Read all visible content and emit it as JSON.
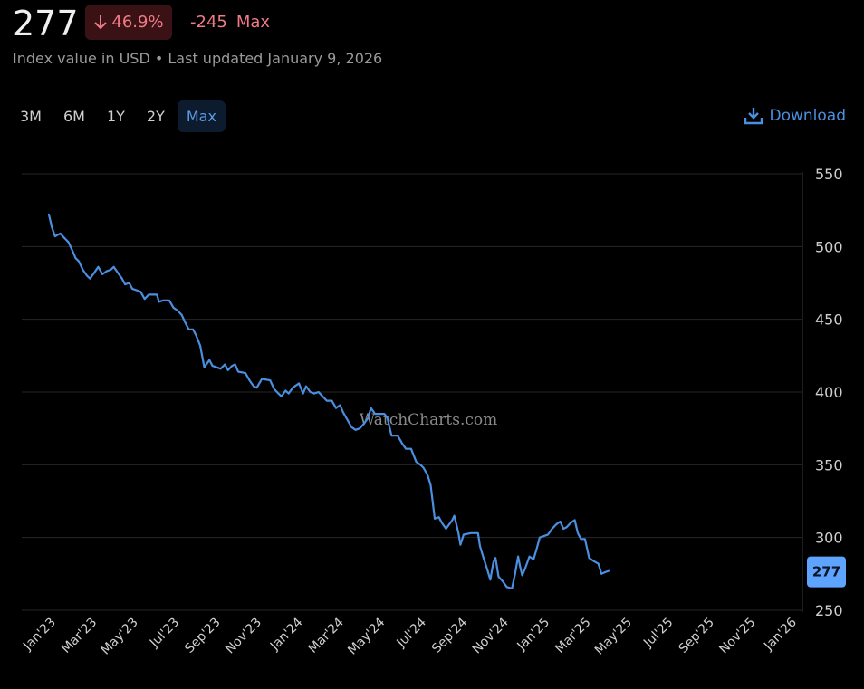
{
  "header": {
    "value": "277",
    "pct_change": "46.9%",
    "abs_change": "-245",
    "range_label": "Max",
    "subtitle": "Index value in USD • Last updated January 9, 2026"
  },
  "range_tabs": [
    {
      "label": "3M",
      "active": false
    },
    {
      "label": "6M",
      "active": false
    },
    {
      "label": "1Y",
      "active": false
    },
    {
      "label": "2Y",
      "active": false
    },
    {
      "label": "Max",
      "active": true
    }
  ],
  "download_label": "Download",
  "watermark": "WatchCharts.com",
  "colors": {
    "line": "#4a8fe0",
    "negative": "#f07b86",
    "grid": "#262626",
    "badge_bg": "#3a1216",
    "last_label_bg": "#5ea4ff"
  },
  "chart_data": {
    "type": "line",
    "title": "",
    "xlabel": "",
    "ylabel": "",
    "ylim": [
      250,
      550
    ],
    "yticks": [
      550,
      500,
      450,
      400,
      350,
      300,
      250
    ],
    "xticks": [
      "Jan'23",
      "Mar'23",
      "May'23",
      "Jul'23",
      "Sep'23",
      "Nov'23",
      "Jan'24",
      "Mar'24",
      "May'24",
      "Jul'24",
      "Sep'24",
      "Nov'24",
      "Jan'25",
      "Mar'25",
      "May'25",
      "Jul'25",
      "Sep'25",
      "Nov'25",
      "Jan'26"
    ],
    "grid": true,
    "legend": "none",
    "last_value_label": "277",
    "series": [
      {
        "x_unit": "months since Jan 2023",
        "points": [
          [
            0.0,
            522
          ],
          [
            0.15,
            513
          ],
          [
            0.3,
            507
          ],
          [
            0.55,
            509
          ],
          [
            0.75,
            506
          ],
          [
            0.95,
            503
          ],
          [
            1.15,
            497
          ],
          [
            1.3,
            492
          ],
          [
            1.45,
            490
          ],
          [
            1.65,
            484
          ],
          [
            1.85,
            480
          ],
          [
            2.0,
            478
          ],
          [
            2.2,
            482
          ],
          [
            2.4,
            486
          ],
          [
            2.6,
            481
          ],
          [
            2.8,
            483
          ],
          [
            3.0,
            484
          ],
          [
            3.15,
            486
          ],
          [
            3.35,
            482
          ],
          [
            3.55,
            478
          ],
          [
            3.7,
            474
          ],
          [
            3.9,
            475
          ],
          [
            4.05,
            471
          ],
          [
            4.25,
            470
          ],
          [
            4.45,
            469
          ],
          [
            4.65,
            464
          ],
          [
            4.85,
            467
          ],
          [
            5.05,
            467
          ],
          [
            5.25,
            467
          ],
          [
            5.35,
            462
          ],
          [
            5.55,
            463
          ],
          [
            5.85,
            463
          ],
          [
            6.05,
            458
          ],
          [
            6.25,
            456
          ],
          [
            6.45,
            453
          ],
          [
            6.65,
            447
          ],
          [
            6.8,
            443
          ],
          [
            7.0,
            443
          ],
          [
            7.15,
            439
          ],
          [
            7.35,
            432
          ],
          [
            7.55,
            417
          ],
          [
            7.8,
            422
          ],
          [
            7.95,
            418
          ],
          [
            8.15,
            417
          ],
          [
            8.35,
            416
          ],
          [
            8.55,
            419
          ],
          [
            8.7,
            415
          ],
          [
            8.9,
            418
          ],
          [
            9.05,
            419
          ],
          [
            9.2,
            414
          ],
          [
            9.55,
            413
          ],
          [
            9.75,
            408
          ],
          [
            9.95,
            404
          ],
          [
            10.1,
            403
          ],
          [
            10.35,
            409
          ],
          [
            10.75,
            408
          ],
          [
            10.95,
            402
          ],
          [
            11.15,
            399
          ],
          [
            11.3,
            397
          ],
          [
            11.5,
            401
          ],
          [
            11.65,
            399
          ],
          [
            11.85,
            403
          ],
          [
            12.15,
            406
          ],
          [
            12.35,
            399
          ],
          [
            12.5,
            404
          ],
          [
            12.7,
            400
          ],
          [
            12.9,
            399
          ],
          [
            13.1,
            400
          ],
          [
            13.3,
            397
          ],
          [
            13.5,
            394
          ],
          [
            13.75,
            394
          ],
          [
            13.95,
            389
          ],
          [
            14.15,
            391
          ],
          [
            14.3,
            386
          ],
          [
            14.5,
            381
          ],
          [
            14.7,
            376
          ],
          [
            14.9,
            374
          ],
          [
            15.1,
            375
          ],
          [
            15.3,
            378
          ],
          [
            15.5,
            382
          ],
          [
            15.65,
            389
          ],
          [
            15.85,
            385
          ],
          [
            16.05,
            385
          ],
          [
            16.3,
            385
          ],
          [
            16.45,
            382
          ],
          [
            16.65,
            370
          ],
          [
            16.95,
            370
          ],
          [
            17.15,
            365
          ],
          [
            17.35,
            361
          ],
          [
            17.6,
            361
          ],
          [
            17.85,
            352
          ],
          [
            18.05,
            350
          ],
          [
            18.2,
            348
          ],
          [
            18.4,
            343
          ],
          [
            18.55,
            336
          ],
          [
            18.75,
            313
          ],
          [
            18.95,
            314
          ],
          [
            19.1,
            310
          ],
          [
            19.3,
            306
          ],
          [
            19.45,
            309
          ],
          [
            19.6,
            312
          ],
          [
            19.7,
            315
          ],
          [
            19.9,
            303
          ],
          [
            20.0,
            295
          ],
          [
            20.15,
            302
          ],
          [
            20.5,
            303
          ],
          [
            20.85,
            303
          ],
          [
            20.95,
            294
          ],
          [
            21.1,
            287
          ],
          [
            21.3,
            278
          ],
          [
            21.45,
            271
          ],
          [
            21.6,
            283
          ],
          [
            21.7,
            286
          ],
          [
            21.85,
            273
          ],
          [
            22.05,
            270
          ],
          [
            22.25,
            266
          ],
          [
            22.5,
            265
          ],
          [
            22.65,
            275
          ],
          [
            22.8,
            287
          ],
          [
            22.9,
            280
          ],
          [
            23.0,
            274
          ],
          [
            23.15,
            279
          ],
          [
            23.35,
            287
          ],
          [
            23.55,
            285
          ],
          [
            23.7,
            292
          ],
          [
            23.85,
            300
          ],
          [
            24.05,
            301
          ],
          [
            24.25,
            302
          ],
          [
            24.45,
            306
          ],
          [
            24.65,
            309
          ],
          [
            24.85,
            311
          ],
          [
            25.0,
            306
          ],
          [
            25.15,
            307
          ],
          [
            25.35,
            310
          ],
          [
            25.55,
            312
          ],
          [
            25.7,
            303
          ],
          [
            25.85,
            299
          ],
          [
            26.05,
            299
          ],
          [
            26.25,
            286
          ],
          [
            26.45,
            284
          ],
          [
            26.7,
            282
          ],
          [
            26.85,
            275
          ],
          [
            27.0,
            276
          ],
          [
            27.2,
            277
          ]
        ]
      }
    ]
  }
}
